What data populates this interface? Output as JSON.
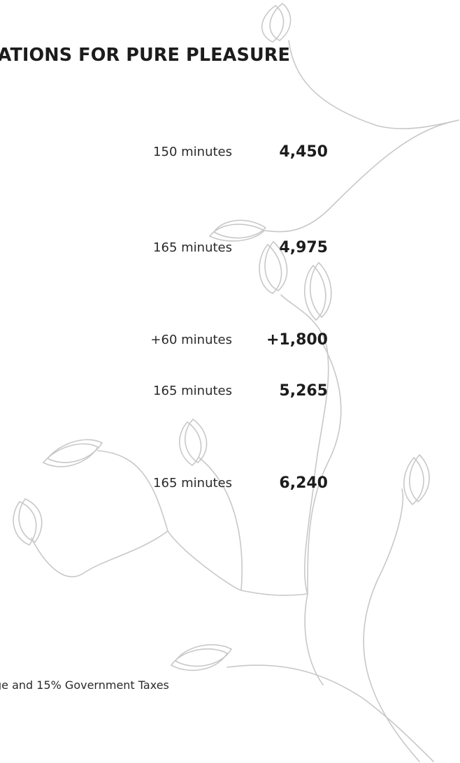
{
  "heading": "IATIONS FOR PURE PLEASURE",
  "rows": [
    {
      "duration": "150 minutes",
      "price": "4,450"
    },
    {
      "duration": "165 minutes",
      "price": "4,975"
    },
    {
      "duration": "+60 minutes",
      "price": "+1,800"
    },
    {
      "duration": "165 minutes",
      "price": "5,265"
    },
    {
      "duration": "165 minutes",
      "price": "6,240"
    }
  ],
  "footnote": "ge and 15% Government Taxes",
  "colors": {
    "vine": "#c8c8c8",
    "text": "#1c1c1c",
    "background": "#ffffff"
  },
  "decoration": "vine-with-leaves"
}
